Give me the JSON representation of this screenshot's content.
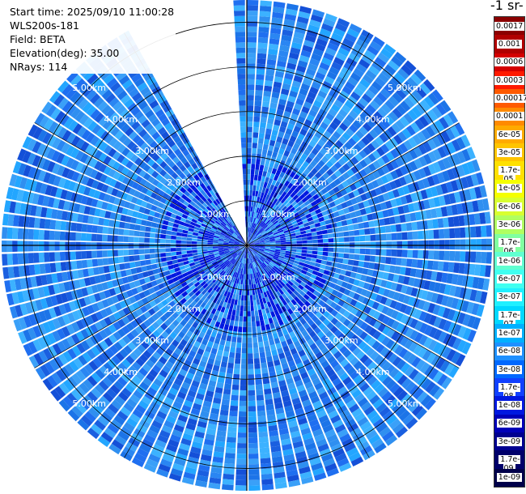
{
  "header": {
    "start_time": "Start time: 2025/09/10 11:00:28",
    "instrument": "WLS200s-181",
    "field": "Field: BETA",
    "elevation": "Elevation(deg): 35.00",
    "nrays": "NRays: 114"
  },
  "colorbar": {
    "title": "-1 sr-",
    "labels": [
      "0.0017",
      "0.001",
      "0.0006",
      "0.0003",
      "0.00017",
      "0.0001",
      "6e-05",
      "3e-05",
      "1.7e-05",
      "1e-05",
      "6e-06",
      "3e-06",
      "1.7e-06",
      "1e-06",
      "6e-07",
      "3e-07",
      "1.7e-07",
      "1e-07",
      "6e-08",
      "3e-08",
      "1.7e-08",
      "1e-08",
      "6e-09",
      "3e-09",
      "1.7e-09",
      "1e-09"
    ],
    "colors": [
      "#8b0000",
      "#b00000",
      "#d40000",
      "#ff1a00",
      "#ff5a00",
      "#ff8a00",
      "#ffaa00",
      "#ffc400",
      "#ffe000",
      "#f4ff00",
      "#d8ff30",
      "#b0ff60",
      "#80ffa0",
      "#60ffd0",
      "#40fff0",
      "#20f0ff",
      "#00d8ff",
      "#00b0ff",
      "#1e90ff",
      "#0068ff",
      "#1040ff",
      "#0018e0",
      "#0000b8",
      "#000090",
      "#00006a",
      "#00004a"
    ]
  },
  "chart_data": {
    "type": "heatmap",
    "projection": "polar PPI",
    "title": "",
    "field": "BETA",
    "range_rings_km": [
      1,
      2,
      3,
      4,
      5
    ],
    "range_labels": [
      "1.00km",
      "2.00km",
      "3.00km",
      "4.00km",
      "5.00km"
    ],
    "max_range_km": 5.5,
    "n_rays": 114,
    "elevation_deg": 35.0,
    "missing_sector_deg": [
      333,
      358
    ],
    "colorscale": "log",
    "value_range": [
      1e-09,
      0.0017
    ],
    "typical_values": {
      "near_range": "3e-08 to 1e-07",
      "far_range": "3e-08 to 1.7e-07"
    },
    "grid": true
  }
}
